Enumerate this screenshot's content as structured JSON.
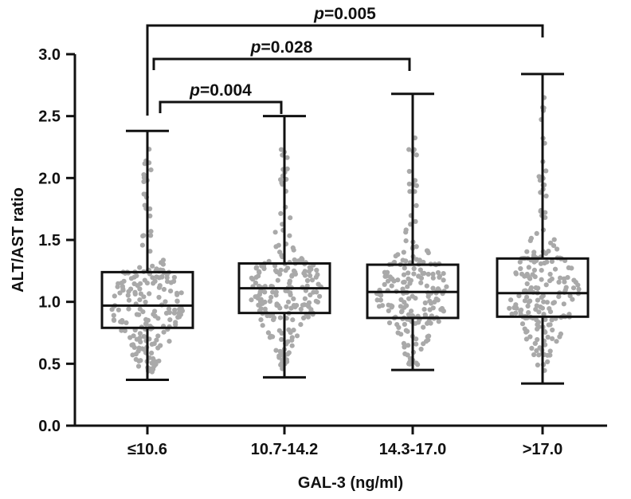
{
  "chart_data": {
    "type": "boxplot",
    "title": "",
    "xlabel": "GAL-3 (ng/ml)",
    "ylabel": "ALT/AST ratio",
    "ylim": [
      0.0,
      3.0
    ],
    "yticks": [
      "0.0",
      "0.5",
      "1.0",
      "1.5",
      "2.0",
      "2.5",
      "3.0"
    ],
    "categories": [
      "≤10.6",
      "10.7-14.2",
      "14.3-17.0",
      ">17.0"
    ],
    "boxes": [
      {
        "group": "≤10.6",
        "min": 0.37,
        "q1": 0.79,
        "median": 0.97,
        "q3": 1.24,
        "max": 2.38
      },
      {
        "group": "10.7-14.2",
        "min": 0.39,
        "q1": 0.91,
        "median": 1.11,
        "q3": 1.31,
        "max": 2.5
      },
      {
        "group": "14.3-17.0",
        "min": 0.45,
        "q1": 0.87,
        "median": 1.08,
        "q3": 1.3,
        "max": 2.68
      },
      {
        "group": ">17.0",
        "min": 0.34,
        "q1": 0.88,
        "median": 1.07,
        "q3": 1.35,
        "max": 2.84
      }
    ],
    "comparisons": [
      {
        "from": "≤10.6",
        "to": "10.7-14.2",
        "p_prefix": "p",
        "p_value": "=0.004"
      },
      {
        "from": "≤10.6",
        "to": "14.3-17.0",
        "p_prefix": "p",
        "p_value": "=0.028"
      },
      {
        "from": "≤10.6",
        "to": ">17.0",
        "p_prefix": "p",
        "p_value": "=0.005"
      }
    ],
    "point_color": "#a9a9a9",
    "line_color": "#111111"
  }
}
